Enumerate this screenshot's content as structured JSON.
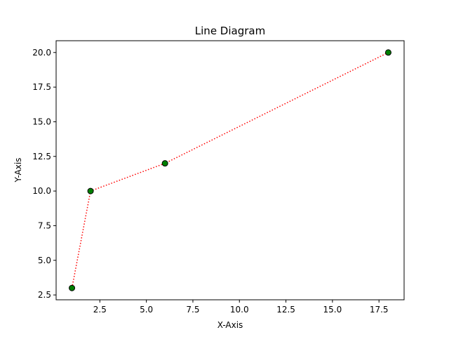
{
  "chart_data": {
    "type": "line",
    "title": "Line Diagram",
    "xlabel": "X-Axis",
    "ylabel": "Y-Axis",
    "x": [
      1,
      2,
      6,
      18
    ],
    "series": [
      {
        "values": [
          3,
          10,
          12,
          20
        ],
        "line_color": "#ff0000",
        "line_style": "dotted",
        "marker": "circle",
        "marker_face_color": "#008000",
        "marker_edge_color": "#000000"
      }
    ],
    "xlim": [
      0.15,
      18.85
    ],
    "ylim": [
      2.15,
      20.85
    ],
    "x_ticks": [
      2.5,
      5.0,
      7.5,
      10.0,
      12.5,
      15.0,
      17.5
    ],
    "x_tick_labels": [
      "2.5",
      "5.0",
      "7.5",
      "10.0",
      "12.5",
      "15.0",
      "17.5"
    ],
    "y_ticks": [
      2.5,
      5.0,
      7.5,
      10.0,
      12.5,
      15.0,
      17.5,
      20.0
    ],
    "y_tick_labels": [
      "2.5",
      "5.0",
      "7.5",
      "10.0",
      "12.5",
      "15.0",
      "17.5",
      "20.0"
    ],
    "grid": false,
    "legend": "none"
  }
}
